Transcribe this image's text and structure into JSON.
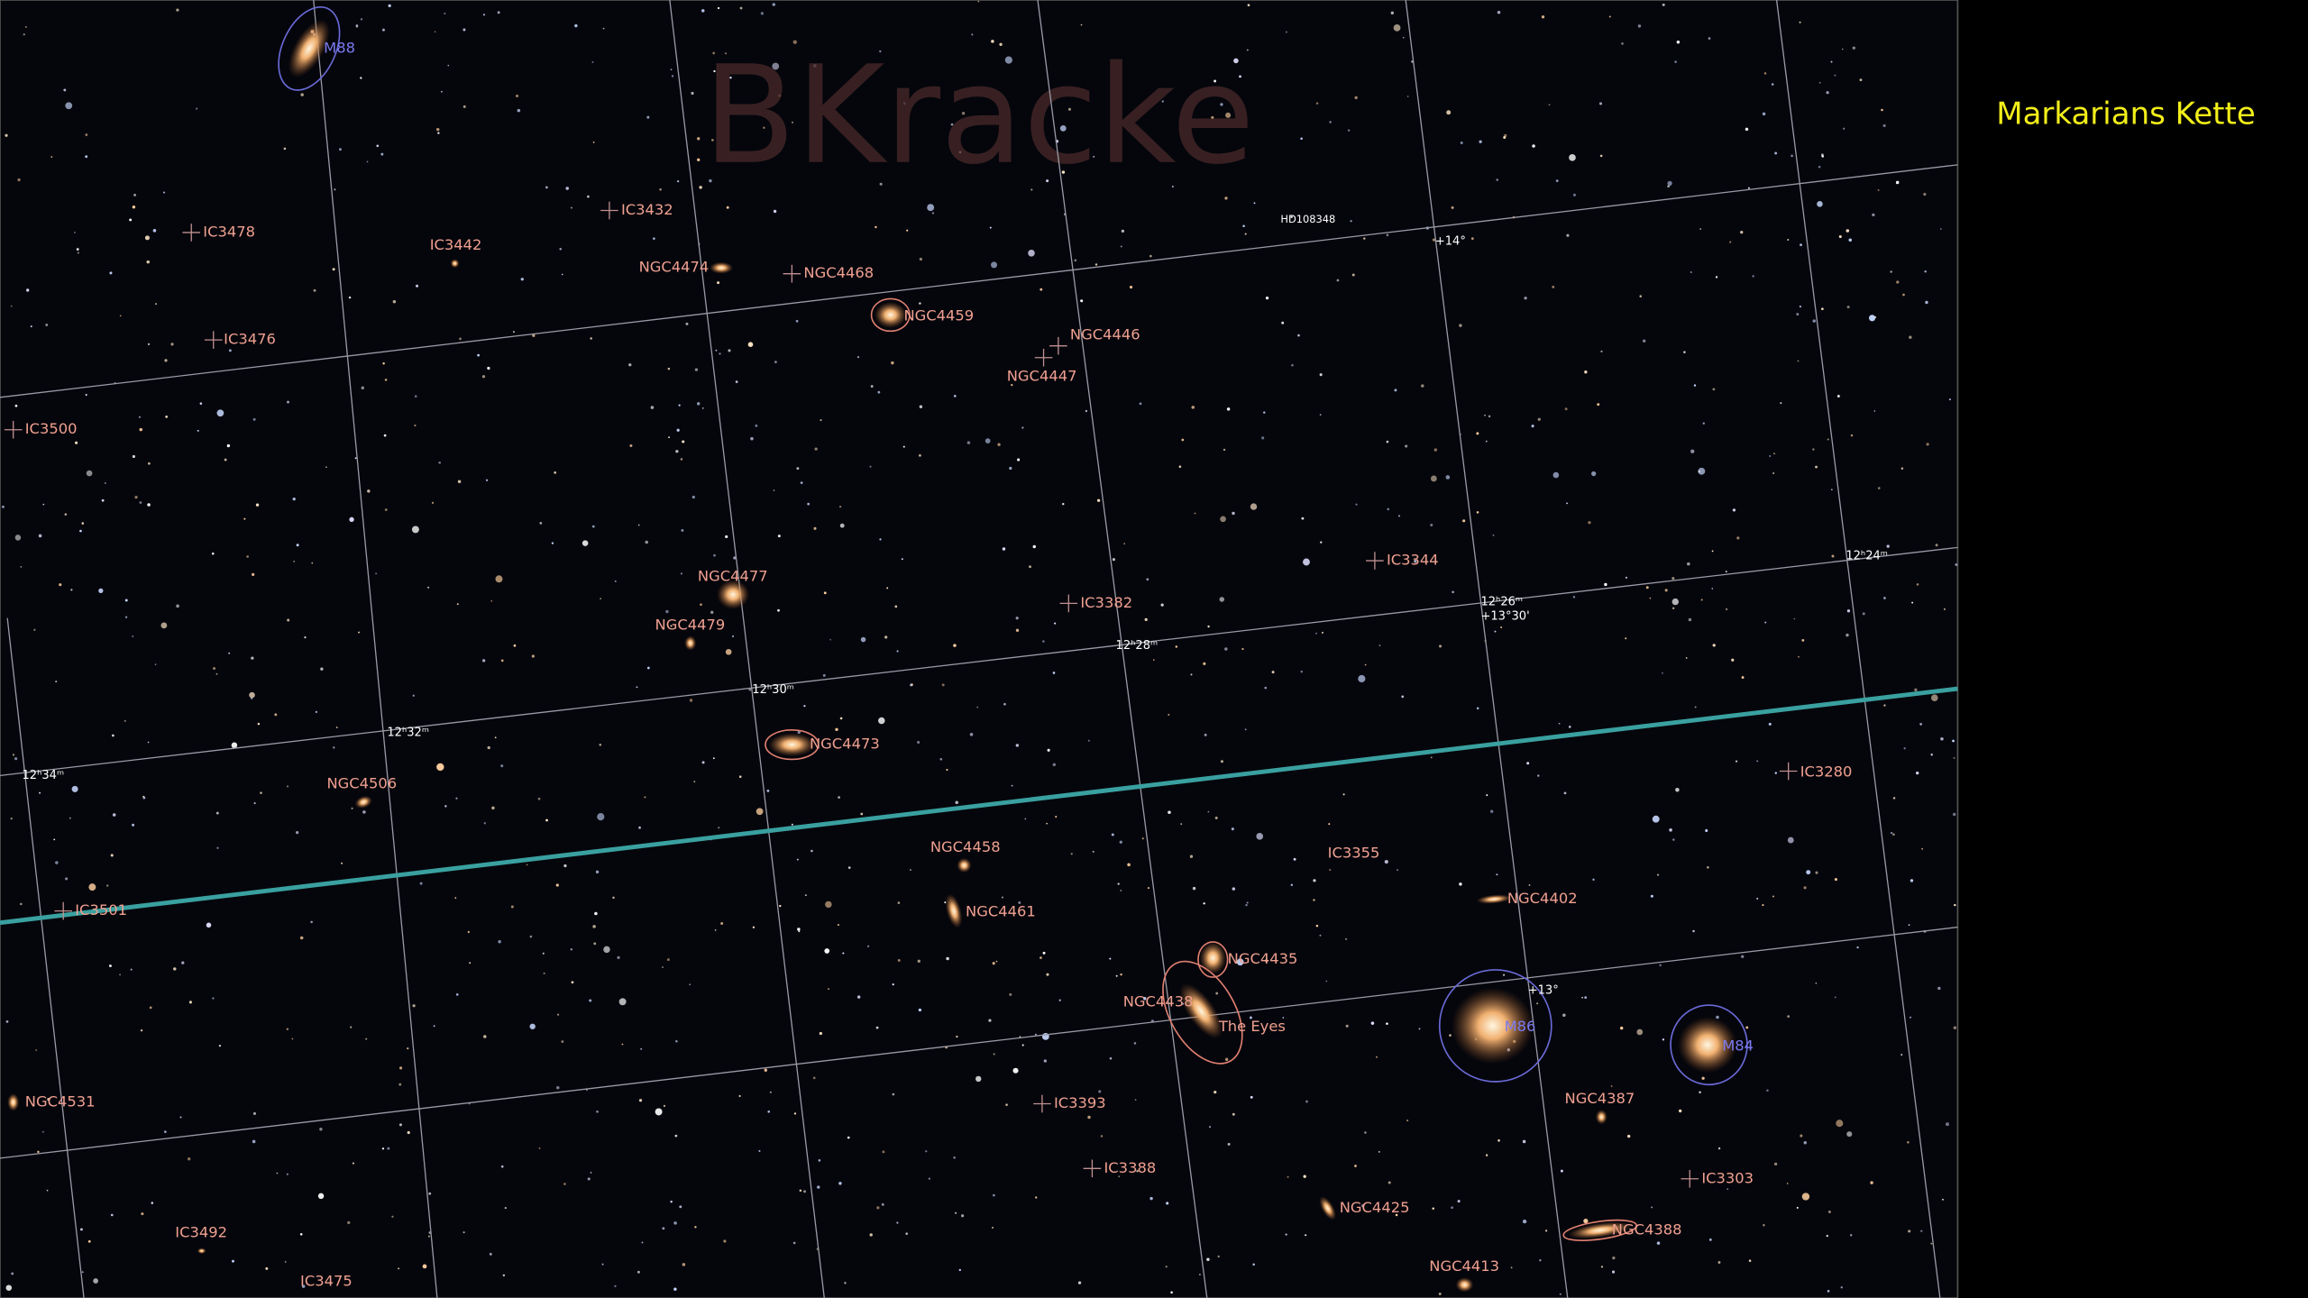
{
  "watermark": "BKracke",
  "title": "Markarians Kette",
  "messier": [
    "M88",
    "M86",
    "M84"
  ],
  "objects": [
    "IC3478",
    "IC3442",
    "IC3432",
    "NGC4474",
    "NGC4468",
    "NGC4459",
    "NGC4446",
    "NGC4447",
    "IC3476",
    "IC3500",
    "IC3344",
    "NGC4477",
    "IC3382",
    "NGC4479",
    "NGC4473",
    "NGC4506",
    "IC3280",
    "NGC4458",
    "IC3355",
    "NGC4402",
    "IC3501",
    "NGC4461",
    "NGC4435",
    "NGC4438",
    "The Eyes",
    "NGC4531",
    "IC3393",
    "NGC4387",
    "IC3388",
    "IC3303",
    "NGC4425",
    "NGC4388",
    "IC3492",
    "NGC4413",
    "IC3475"
  ],
  "coordinates": [
    "HD108348",
    "+14°",
    "12ʰ24ᵐ",
    "12ʰ26ᵐ",
    "+13°30'",
    "12ʰ28ᵐ",
    "12ʰ30ᵐ",
    "12ʰ32ᵐ",
    "12ʰ34ᵐ",
    "+13°"
  ]
}
